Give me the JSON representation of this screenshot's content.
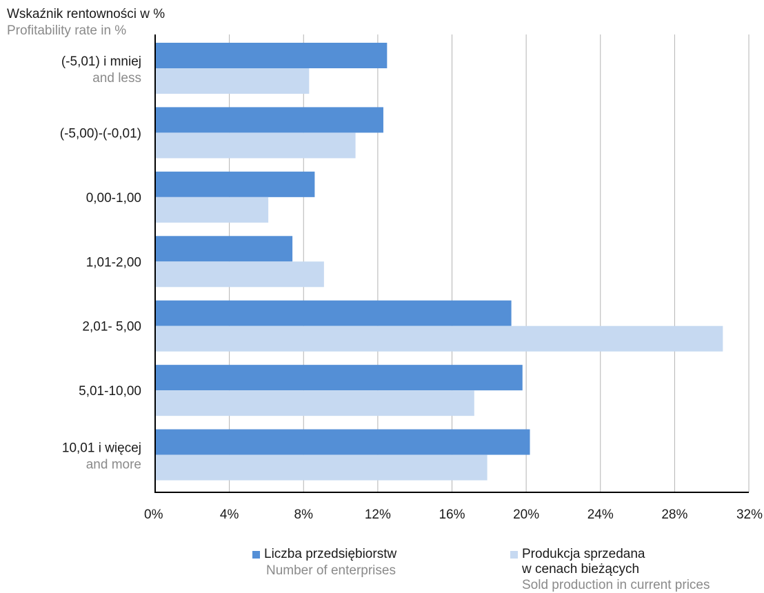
{
  "chart_data": {
    "type": "bar",
    "orientation": "horizontal",
    "axis_title": {
      "pl": "Wskaźnik rentowności w %",
      "en": "Profitability rate in %"
    },
    "categories": [
      {
        "pl": "(-5,01) i mniej",
        "en": "and less"
      },
      {
        "pl": "(-5,00)-(-0,01)",
        "en": ""
      },
      {
        "pl": "0,00-1,00",
        "en": ""
      },
      {
        "pl": "1,01-2,00",
        "en": ""
      },
      {
        "pl": "2,01- 5,00",
        "en": ""
      },
      {
        "pl": "5,01-10,00",
        "en": ""
      },
      {
        "pl": "10,01 i więcej",
        "en": "and more"
      }
    ],
    "series": [
      {
        "name_pl": "Liczba przedsiębiorstw",
        "name_en": "Number of enterprises",
        "color": "#548fd6",
        "values": [
          12.5,
          12.3,
          8.6,
          7.4,
          19.2,
          19.8,
          20.2
        ]
      },
      {
        "name_pl_lines": [
          "Produkcja sprzedana",
          "w cenach bieżących"
        ],
        "name_en": "Sold production in current prices",
        "color": "#c6d9f1",
        "values": [
          8.3,
          10.8,
          6.1,
          9.1,
          30.6,
          17.2,
          17.9
        ]
      }
    ],
    "xlim": [
      0,
      32
    ],
    "xticks": [
      "0%",
      "4%",
      "8%",
      "12%",
      "16%",
      "20%",
      "24%",
      "28%",
      "32%"
    ],
    "grid": "vertical",
    "legend_position": "bottom"
  }
}
